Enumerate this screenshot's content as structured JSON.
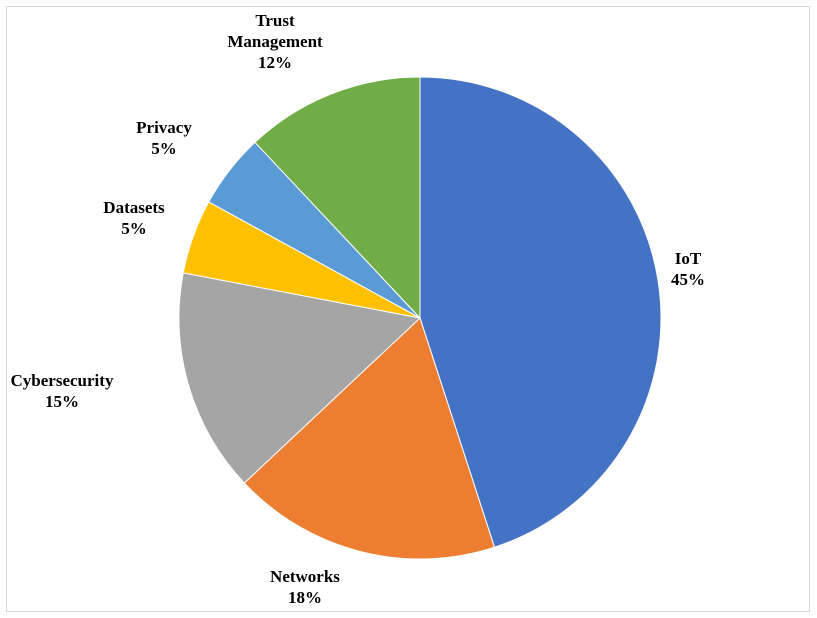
{
  "chart_data": {
    "type": "pie",
    "title": "",
    "slices": [
      {
        "label": "IoT",
        "value": 45,
        "value_label": "45%",
        "color": "#4472C4"
      },
      {
        "label": "Networks",
        "value": 18,
        "value_label": "18%",
        "color": "#ED7D31"
      },
      {
        "label": "Cybersecurity",
        "value": 15,
        "value_label": "15%",
        "color": "#A5A5A5"
      },
      {
        "label": "Datasets",
        "value": 5,
        "value_label": "5%",
        "color": "#FFC000"
      },
      {
        "label": "Privacy",
        "value": 5,
        "value_label": "5%",
        "color": "#5B9BD5"
      },
      {
        "label": "Trust Management",
        "value": 12,
        "value_label": "12%",
        "color": "#70AD47"
      }
    ],
    "start_angle": "12 o'clock",
    "direction": "clockwise",
    "legend": "none"
  }
}
